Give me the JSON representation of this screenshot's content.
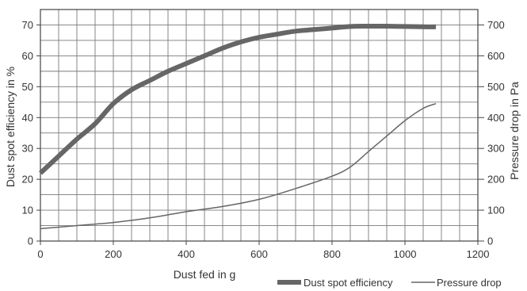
{
  "chart_data": {
    "type": "line",
    "xlabel": "Dust fed in g",
    "ylabel_left": "Dust spot efficiency in %",
    "ylabel_right": "Pressure drop in Pa",
    "xlim": [
      0,
      1200
    ],
    "ylim_left": [
      0,
      75
    ],
    "ylim_right": [
      0,
      750
    ],
    "x_ticks": [
      "0",
      "200",
      "400",
      "600",
      "800",
      "1000",
      "1200"
    ],
    "y_left_ticks": [
      "0",
      "10",
      "20",
      "30",
      "40",
      "50",
      "60",
      "70"
    ],
    "y_right_ticks": [
      "0",
      "100",
      "200",
      "300",
      "400",
      "500",
      "600",
      "700"
    ],
    "grid": true,
    "legend_position": "bottom-right",
    "series": [
      {
        "name": "Dust spot efficiency",
        "axis": "left",
        "style": "thick",
        "color": "#666666",
        "x": [
          0,
          50,
          100,
          150,
          200,
          250,
          300,
          350,
          400,
          450,
          500,
          550,
          600,
          650,
          700,
          750,
          800,
          850,
          900,
          950,
          1000,
          1050,
          1085
        ],
        "y": [
          22,
          27.5,
          33,
          38,
          44.5,
          49,
          52,
          55,
          57.5,
          60,
          62.5,
          64.5,
          66,
          67,
          68,
          68.5,
          69,
          69.5,
          69.6,
          69.6,
          69.5,
          69.4,
          69.4
        ]
      },
      {
        "name": "Pressure drop",
        "axis": "right",
        "style": "thin",
        "color": "#666666",
        "x": [
          0,
          100,
          200,
          300,
          400,
          500,
          600,
          700,
          800,
          850,
          900,
          950,
          1000,
          1050,
          1085
        ],
        "y": [
          40,
          50,
          60,
          75,
          95,
          112,
          135,
          170,
          210,
          240,
          290,
          340,
          390,
          430,
          445
        ]
      }
    ]
  }
}
